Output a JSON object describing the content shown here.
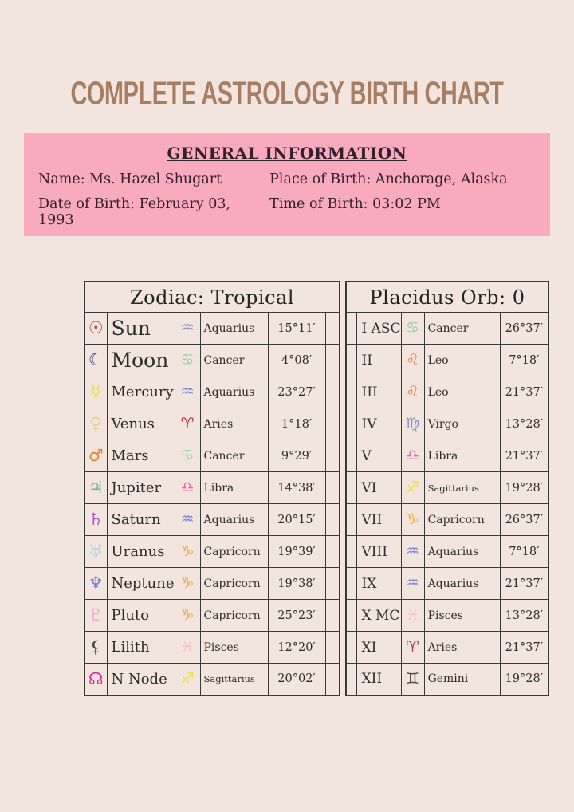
{
  "title": "COMPLETE ASTROLOGY BIRTH CHART",
  "colors": {
    "page_background": "#f2e5de",
    "title_text": "#a87e62",
    "info_box_background": "#f8abbe",
    "table_border": "#3a3a3a"
  },
  "general_info": {
    "heading": "GENERAL INFORMATION",
    "fields": [
      {
        "label": "Name",
        "value": "Ms. Hazel Shugart"
      },
      {
        "label": "Place of Birth",
        "value": "Anchorage, Alaska"
      },
      {
        "label": "Date of Birth",
        "value": "February 03, 1993"
      },
      {
        "label": "Time of Birth",
        "value": "03:02 PM"
      }
    ]
  },
  "zodiac_table": {
    "header": "Zodiac: Tropical",
    "rows": [
      {
        "planet": "Sun",
        "planet_icon": "sun-icon",
        "planet_glyph": "☉",
        "planet_color": "#a84444",
        "sign": "Aquarius",
        "sign_icon": "aquarius-icon",
        "sign_glyph": "♒",
        "sign_color": "#7b86d9",
        "degrees": "15°11′"
      },
      {
        "planet": "Moon",
        "planet_icon": "moon-icon",
        "planet_glyph": "☾",
        "planet_color": "#2c3a78",
        "sign": "Cancer",
        "sign_icon": "cancer-icon",
        "sign_glyph": "♋",
        "sign_color": "#8fd6a2",
        "degrees": "4°08′"
      },
      {
        "planet": "Mercury",
        "planet_icon": "mercury-icon",
        "planet_glyph": "☿",
        "planet_color": "#f0d955",
        "sign": "Aquarius",
        "sign_icon": "aquarius-icon",
        "sign_glyph": "♒",
        "sign_color": "#7b86d9",
        "degrees": "23°27′"
      },
      {
        "planet": "Venus",
        "planet_icon": "venus-icon",
        "planet_glyph": "♀",
        "planet_color": "#e5d493",
        "sign": "Aries",
        "sign_icon": "aries-icon",
        "sign_glyph": "♈",
        "sign_color": "#b13a48",
        "degrees": "1°18′"
      },
      {
        "planet": "Mars",
        "planet_icon": "mars-icon",
        "planet_glyph": "♂",
        "planet_color": "#e8822b",
        "sign": "Cancer",
        "sign_icon": "cancer-icon",
        "sign_glyph": "♋",
        "sign_color": "#8fd6a2",
        "degrees": "9°29′"
      },
      {
        "planet": "Jupiter",
        "planet_icon": "jupiter-icon",
        "planet_glyph": "♃",
        "planet_color": "#6cc08c",
        "sign": "Libra",
        "sign_icon": "libra-icon",
        "sign_glyph": "♎",
        "sign_color": "#f060a8",
        "degrees": "14°38′"
      },
      {
        "planet": "Saturn",
        "planet_icon": "saturn-icon",
        "planet_glyph": "♄",
        "planet_color": "#b84fd0",
        "sign": "Aquarius",
        "sign_icon": "aquarius-icon",
        "sign_glyph": "♒",
        "sign_color": "#7b86d9",
        "degrees": "20°15′"
      },
      {
        "planet": "Uranus",
        "planet_icon": "uranus-icon",
        "planet_glyph": "♅",
        "planet_color": "#a5d7e8",
        "sign": "Capricorn",
        "sign_icon": "capricorn-icon",
        "sign_glyph": "♑",
        "sign_color": "#eeb33a",
        "degrees": "19°39′"
      },
      {
        "planet": "Neptune",
        "planet_icon": "neptune-icon",
        "planet_glyph": "♆",
        "planet_color": "#6b79d9",
        "sign": "Capricorn",
        "sign_icon": "capricorn-icon",
        "sign_glyph": "♑",
        "sign_color": "#eeb33a",
        "degrees": "19°38′"
      },
      {
        "planet": "Pluto",
        "planet_icon": "pluto-icon",
        "planet_glyph": "♇",
        "planet_color": "#f2aac6",
        "sign": "Capricorn",
        "sign_icon": "capricorn-icon",
        "sign_glyph": "♑",
        "sign_color": "#eeb33a",
        "degrees": "25°23′"
      },
      {
        "planet": "Lilith",
        "planet_icon": "lilith-icon",
        "planet_glyph": "⚸",
        "planet_color": "#4a4a4a",
        "sign": "Pisces",
        "sign_icon": "pisces-icon",
        "sign_glyph": "♓",
        "sign_color": "#f3c3cc",
        "degrees": "12°20′"
      },
      {
        "planet": "N Node",
        "planet_icon": "north-node-icon",
        "planet_glyph": "☊",
        "planet_color": "#e8259a",
        "sign": "Sagittarius",
        "sign_icon": "sagittarius-icon",
        "sign_glyph": "♐",
        "sign_color": "#f0e03a",
        "degrees": "20°02′"
      }
    ]
  },
  "houses_table": {
    "header": "Placidus Orb: 0",
    "rows": [
      {
        "house": "I ASC",
        "sign": "Cancer",
        "sign_icon": "cancer-icon",
        "sign_glyph": "♋",
        "sign_color": "#8fd6a2",
        "degrees": "26°37′"
      },
      {
        "house": "II",
        "sign": "Leo",
        "sign_icon": "leo-icon",
        "sign_glyph": "♌",
        "sign_color": "#e98b4a",
        "degrees": "7°18′"
      },
      {
        "house": "III",
        "sign": "Leo",
        "sign_icon": "leo-icon",
        "sign_glyph": "♌",
        "sign_color": "#e98b4a",
        "degrees": "21°37′"
      },
      {
        "house": "IV",
        "sign": "Virgo",
        "sign_icon": "virgo-icon",
        "sign_glyph": "♍",
        "sign_color": "#7a8fd4",
        "degrees": "13°28′"
      },
      {
        "house": "V",
        "sign": "Libra",
        "sign_icon": "libra-icon",
        "sign_glyph": "♎",
        "sign_color": "#f060a8",
        "degrees": "21°37′"
      },
      {
        "house": "VI",
        "sign": "Sagittarius",
        "sign_icon": "sagittarius-icon",
        "sign_glyph": "♐",
        "sign_color": "#f0e03a",
        "degrees": "19°28′"
      },
      {
        "house": "VII",
        "sign": "Capricorn",
        "sign_icon": "capricorn-icon",
        "sign_glyph": "♑",
        "sign_color": "#eeb33a",
        "degrees": "26°37′"
      },
      {
        "house": "VIII",
        "sign": "Aquarius",
        "sign_icon": "aquarius-icon",
        "sign_glyph": "♒",
        "sign_color": "#7b86d9",
        "degrees": "7°18′"
      },
      {
        "house": "IX",
        "sign": "Aquarius",
        "sign_icon": "aquarius-icon",
        "sign_glyph": "♒",
        "sign_color": "#7b86d9",
        "degrees": "21°37′"
      },
      {
        "house": "X MC",
        "sign": "Pisces",
        "sign_icon": "pisces-icon",
        "sign_glyph": "♓",
        "sign_color": "#f3c3cc",
        "degrees": "13°28′"
      },
      {
        "house": "XI",
        "sign": "Aries",
        "sign_icon": "aries-icon",
        "sign_glyph": "♈",
        "sign_color": "#b13a48",
        "degrees": "21°37′"
      },
      {
        "house": "XII",
        "sign": "Gemini",
        "sign_icon": "gemini-icon",
        "sign_glyph": "♊",
        "sign_color": "#4a4a4a",
        "degrees": "19°28′"
      }
    ]
  }
}
